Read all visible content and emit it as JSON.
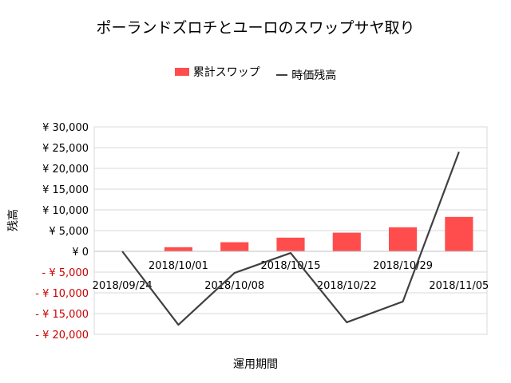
{
  "chart_data": {
    "type": "bar+line",
    "title": "ポーランドズロチとユーロのスワップサヤ取り",
    "xlabel": "運用期間",
    "ylabel": "残高",
    "categories": [
      "2018/09/24",
      "2018/10/01",
      "2018/10/08",
      "2018/10/15",
      "2018/10/22",
      "2018/10/29",
      "2018/11/05"
    ],
    "series": [
      {
        "name": "累計スワップ",
        "type": "bar",
        "color": "#ff4d4d",
        "values": [
          0,
          1000,
          2200,
          3300,
          4500,
          5800,
          8300
        ]
      },
      {
        "name": "時価残高",
        "type": "line",
        "color": "#404040",
        "values": [
          0,
          -17700,
          -5200,
          -400,
          -17100,
          -12100,
          24000
        ]
      }
    ],
    "ylim": [
      -20000,
      30000
    ],
    "yticks": [
      30000,
      25000,
      20000,
      15000,
      10000,
      5000,
      0,
      -5000,
      -10000,
      -15000,
      -20000
    ],
    "ytick_labels": [
      "¥ 30,000",
      "¥ 25,000",
      "¥ 20,000",
      "¥ 15,000",
      "¥ 10,000",
      "¥ 5,000",
      "¥ 0",
      "- ¥ 5,000",
      "- ¥ 10,000",
      "- ¥ 15,000",
      "- ¥ 20,000"
    ],
    "negative_label_color": "#cc0000",
    "grid": true,
    "legend_position": "top"
  }
}
